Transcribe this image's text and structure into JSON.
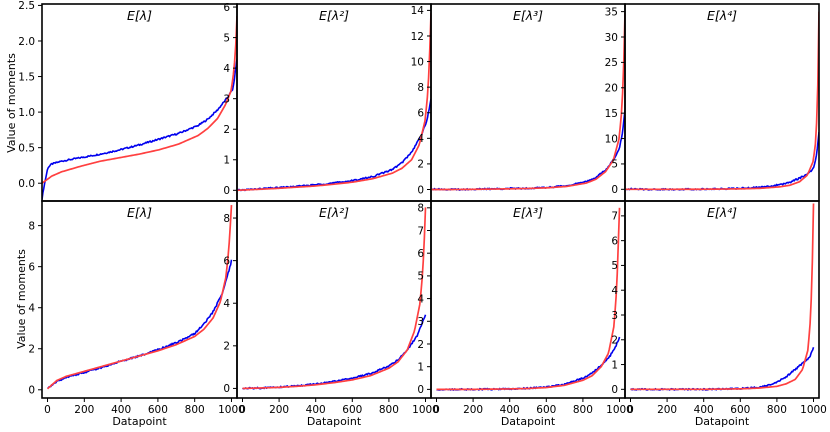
{
  "figure": {
    "ylabel": "Value of moments",
    "xlabel": "Datapoint",
    "colors": {
      "series_a": "#0000ee",
      "series_b": "#ff4040",
      "axes": "#000000"
    }
  },
  "chart_data": [
    {
      "type": "line",
      "row": 0,
      "col": 0,
      "title": "E[λ]",
      "xlim": [
        0,
        1000
      ],
      "ylim": [
        -0.25,
        2.52
      ],
      "yticks": [
        0.0,
        0.5,
        1.0,
        1.5,
        2.0,
        2.5
      ],
      "ytick_labels": [
        "0.0",
        "0.5",
        "1.0",
        "1.5",
        "2.0",
        "2.5"
      ],
      "series": [
        {
          "color": "#0000ee",
          "x": [
            0,
            10,
            30,
            50,
            100,
            200,
            300,
            400,
            500,
            600,
            700,
            800,
            850,
            900,
            950,
            980,
            1000
          ],
          "y": [
            -0.22,
            -0.05,
            0.22,
            0.27,
            0.31,
            0.36,
            0.41,
            0.47,
            0.54,
            0.62,
            0.7,
            0.81,
            0.9,
            1.03,
            1.2,
            1.33,
            1.75
          ]
        },
        {
          "color": "#ff4040",
          "x": [
            0,
            50,
            100,
            200,
            300,
            400,
            500,
            600,
            700,
            800,
            850,
            900,
            940,
            970,
            985,
            995,
            1000
          ],
          "y": [
            0.0,
            0.1,
            0.16,
            0.24,
            0.31,
            0.36,
            0.41,
            0.47,
            0.55,
            0.67,
            0.77,
            0.91,
            1.1,
            1.3,
            1.6,
            2.0,
            2.35
          ]
        }
      ]
    },
    {
      "type": "line",
      "row": 0,
      "col": 1,
      "title": "E[λ²]",
      "xlim": [
        0,
        1000
      ],
      "ylim": [
        -0.35,
        6.1
      ],
      "yticks": [
        0,
        1,
        2,
        3,
        4,
        5,
        6
      ],
      "ytick_labels": [
        "0",
        "1",
        "2",
        "3",
        "4",
        "5",
        "6"
      ],
      "series": [
        {
          "color": "#0000ee",
          "x": [
            0,
            100,
            200,
            300,
            400,
            500,
            600,
            700,
            800,
            850,
            900,
            950,
            980,
            1000
          ],
          "y": [
            0.0,
            0.04,
            0.08,
            0.12,
            0.18,
            0.24,
            0.32,
            0.45,
            0.68,
            0.9,
            1.25,
            1.8,
            2.3,
            3.0
          ]
        },
        {
          "color": "#ff4040",
          "x": [
            0,
            100,
            200,
            300,
            400,
            500,
            600,
            700,
            800,
            850,
            900,
            940,
            970,
            985,
            995,
            1000
          ],
          "y": [
            0.0,
            0.03,
            0.06,
            0.1,
            0.14,
            0.2,
            0.27,
            0.38,
            0.56,
            0.72,
            1.0,
            1.5,
            2.3,
            3.3,
            4.8,
            5.8
          ]
        }
      ]
    },
    {
      "type": "line",
      "row": 0,
      "col": 2,
      "title": "E[λ³]",
      "xlim": [
        0,
        1000
      ],
      "ylim": [
        -0.9,
        14.5
      ],
      "yticks": [
        0,
        2,
        4,
        6,
        8,
        10,
        12,
        14
      ],
      "ytick_labels": [
        "0",
        "2",
        "4",
        "6",
        "8",
        "10",
        "12",
        "14"
      ],
      "series": [
        {
          "color": "#0000ee",
          "x": [
            0,
            100,
            200,
            300,
            400,
            500,
            600,
            700,
            800,
            850,
            900,
            940,
            970,
            985,
            1000
          ],
          "y": [
            0.05,
            0.0,
            0.02,
            0.04,
            0.07,
            0.1,
            0.16,
            0.3,
            0.6,
            0.95,
            1.5,
            2.3,
            3.2,
            4.2,
            6.2
          ]
        },
        {
          "color": "#ff4040",
          "x": [
            0,
            100,
            200,
            300,
            400,
            500,
            600,
            700,
            800,
            850,
            900,
            940,
            970,
            985,
            995,
            1000
          ],
          "y": [
            0.0,
            0.0,
            0.01,
            0.03,
            0.05,
            0.08,
            0.13,
            0.24,
            0.5,
            0.8,
            1.4,
            2.3,
            4.0,
            6.5,
            10.5,
            13.8
          ]
        }
      ]
    },
    {
      "type": "line",
      "row": 0,
      "col": 3,
      "title": "E[λ⁴]",
      "xlim": [
        0,
        1000
      ],
      "ylim": [
        -2.3,
        36.5
      ],
      "yticks": [
        0,
        5,
        10,
        15,
        20,
        25,
        30,
        35
      ],
      "ytick_labels": [
        "0",
        "5",
        "10",
        "15",
        "20",
        "25",
        "30",
        "35"
      ],
      "series": [
        {
          "color": "#0000ee",
          "x": [
            0,
            100,
            200,
            300,
            400,
            500,
            600,
            700,
            800,
            850,
            900,
            940,
            970,
            985,
            1000
          ],
          "y": [
            0.1,
            0.0,
            0.0,
            0.02,
            0.05,
            0.1,
            0.2,
            0.4,
            0.9,
            1.4,
            2.2,
            3.0,
            4.0,
            6.0,
            11.5
          ]
        },
        {
          "color": "#ff4040",
          "x": [
            0,
            100,
            200,
            300,
            400,
            500,
            600,
            700,
            800,
            850,
            900,
            940,
            970,
            985,
            995,
            1000
          ],
          "y": [
            0.0,
            0.0,
            0.0,
            0.01,
            0.02,
            0.05,
            0.1,
            0.2,
            0.5,
            0.8,
            1.5,
            2.8,
            5.5,
            10.0,
            22.0,
            35.0
          ]
        }
      ]
    },
    {
      "type": "line",
      "row": 1,
      "col": 0,
      "title": "E[λ]",
      "xlim": [
        -30,
        1030
      ],
      "ylim": [
        -0.4,
        9.2
      ],
      "xticks": [
        0,
        200,
        400,
        600,
        800,
        1000
      ],
      "xtick_labels": [
        "0",
        "200",
        "400",
        "600",
        "800",
        "1000"
      ],
      "yticks": [
        0,
        2,
        4,
        6,
        8
      ],
      "ytick_labels": [
        "0",
        "2",
        "4",
        "6",
        "8"
      ],
      "series": [
        {
          "color": "#0000ee",
          "x": [
            0,
            50,
            100,
            200,
            300,
            400,
            500,
            600,
            700,
            800,
            850,
            900,
            950,
            980,
            1000
          ],
          "y": [
            0.05,
            0.4,
            0.6,
            0.85,
            1.1,
            1.4,
            1.65,
            1.95,
            2.3,
            2.75,
            3.2,
            3.8,
            4.7,
            5.6,
            6.3
          ]
        },
        {
          "color": "#ff4040",
          "x": [
            0,
            50,
            100,
            200,
            300,
            400,
            500,
            600,
            700,
            800,
            850,
            900,
            940,
            970,
            985,
            995,
            1000
          ],
          "y": [
            0.05,
            0.45,
            0.65,
            0.9,
            1.15,
            1.4,
            1.65,
            1.9,
            2.2,
            2.6,
            2.95,
            3.5,
            4.3,
            5.5,
            6.8,
            8.2,
            9.0
          ]
        }
      ]
    },
    {
      "type": "line",
      "row": 1,
      "col": 1,
      "title": "E[λ²]",
      "xlim": [
        -30,
        1030
      ],
      "ylim": [
        -0.45,
        8.8
      ],
      "xticks": [
        0,
        200,
        400,
        600,
        800,
        1000
      ],
      "xtick_labels": [
        "0",
        "200",
        "400",
        "600",
        "800",
        "1000"
      ],
      "yticks": [
        0,
        2,
        4,
        6,
        8
      ],
      "ytick_labels": [
        "0",
        "2",
        "4",
        "6",
        "8"
      ],
      "series": [
        {
          "color": "#0000ee",
          "x": [
            0,
            100,
            200,
            300,
            400,
            500,
            600,
            700,
            800,
            850,
            900,
            950,
            980,
            1000
          ],
          "y": [
            0.0,
            0.02,
            0.06,
            0.12,
            0.2,
            0.32,
            0.48,
            0.7,
            1.05,
            1.35,
            1.8,
            2.4,
            3.0,
            3.5
          ]
        },
        {
          "color": "#ff4040",
          "x": [
            0,
            100,
            200,
            300,
            400,
            500,
            600,
            700,
            800,
            850,
            900,
            940,
            970,
            985,
            995,
            1000
          ],
          "y": [
            0.0,
            0.02,
            0.05,
            0.1,
            0.17,
            0.27,
            0.4,
            0.6,
            0.95,
            1.25,
            1.8,
            2.7,
            4.0,
            5.5,
            7.3,
            8.5
          ]
        }
      ]
    },
    {
      "type": "line",
      "row": 1,
      "col": 2,
      "title": "E[λ³]",
      "xlim": [
        -30,
        1030
      ],
      "ylim": [
        -0.38,
        8.3
      ],
      "xticks": [
        0,
        200,
        400,
        600,
        800,
        1000
      ],
      "xtick_labels": [
        "0",
        "200",
        "400",
        "600",
        "800",
        "1000"
      ],
      "yticks": [
        0,
        1,
        2,
        3,
        4,
        5,
        6,
        7,
        8
      ],
      "ytick_labels": [
        "0",
        "1",
        "2",
        "3",
        "4",
        "5",
        "6",
        "7",
        "8"
      ],
      "series": [
        {
          "color": "#0000ee",
          "x": [
            0,
            100,
            200,
            300,
            400,
            500,
            600,
            700,
            800,
            850,
            900,
            950,
            980,
            1000
          ],
          "y": [
            0.0,
            0.0,
            0.0,
            0.01,
            0.02,
            0.05,
            0.1,
            0.22,
            0.5,
            0.72,
            1.05,
            1.5,
            1.9,
            2.3
          ]
        },
        {
          "color": "#ff4040",
          "x": [
            0,
            100,
            200,
            300,
            400,
            500,
            600,
            700,
            800,
            850,
            900,
            940,
            970,
            985,
            995,
            1000
          ],
          "y": [
            0.0,
            0.0,
            0.0,
            0.01,
            0.02,
            0.04,
            0.08,
            0.18,
            0.4,
            0.6,
            1.0,
            1.6,
            2.8,
            4.5,
            6.8,
            8.0
          ]
        }
      ]
    },
    {
      "type": "line",
      "row": 1,
      "col": 3,
      "title": "E[λ⁴]",
      "xlim": [
        -30,
        1030
      ],
      "ylim": [
        -0.35,
        7.6
      ],
      "xticks": [
        0,
        200,
        400,
        600,
        800,
        1000
      ],
      "xtick_labels": [
        "0",
        "200",
        "400",
        "600",
        "800",
        "1000"
      ],
      "yticks": [
        0,
        1,
        2,
        3,
        4,
        5,
        6,
        7
      ],
      "ytick_labels": [
        "0",
        "1",
        "2",
        "3",
        "4",
        "5",
        "6",
        "7"
      ],
      "series": [
        {
          "color": "#0000ee",
          "x": [
            0,
            100,
            200,
            300,
            400,
            500,
            600,
            700,
            750,
            800,
            850,
            900,
            950,
            980,
            1000
          ],
          "y": [
            0.0,
            0.0,
            0.0,
            0.0,
            0.0,
            0.01,
            0.03,
            0.08,
            0.15,
            0.3,
            0.5,
            0.8,
            1.1,
            1.3,
            1.7
          ]
        },
        {
          "color": "#ff4040",
          "x": [
            0,
            100,
            200,
            300,
            400,
            500,
            600,
            700,
            800,
            850,
            900,
            940,
            970,
            985,
            995,
            1000
          ],
          "y": [
            0.0,
            0.0,
            0.0,
            0.0,
            0.0,
            0.01,
            0.02,
            0.05,
            0.12,
            0.22,
            0.4,
            0.8,
            1.6,
            3.0,
            5.5,
            7.5
          ]
        }
      ]
    }
  ]
}
